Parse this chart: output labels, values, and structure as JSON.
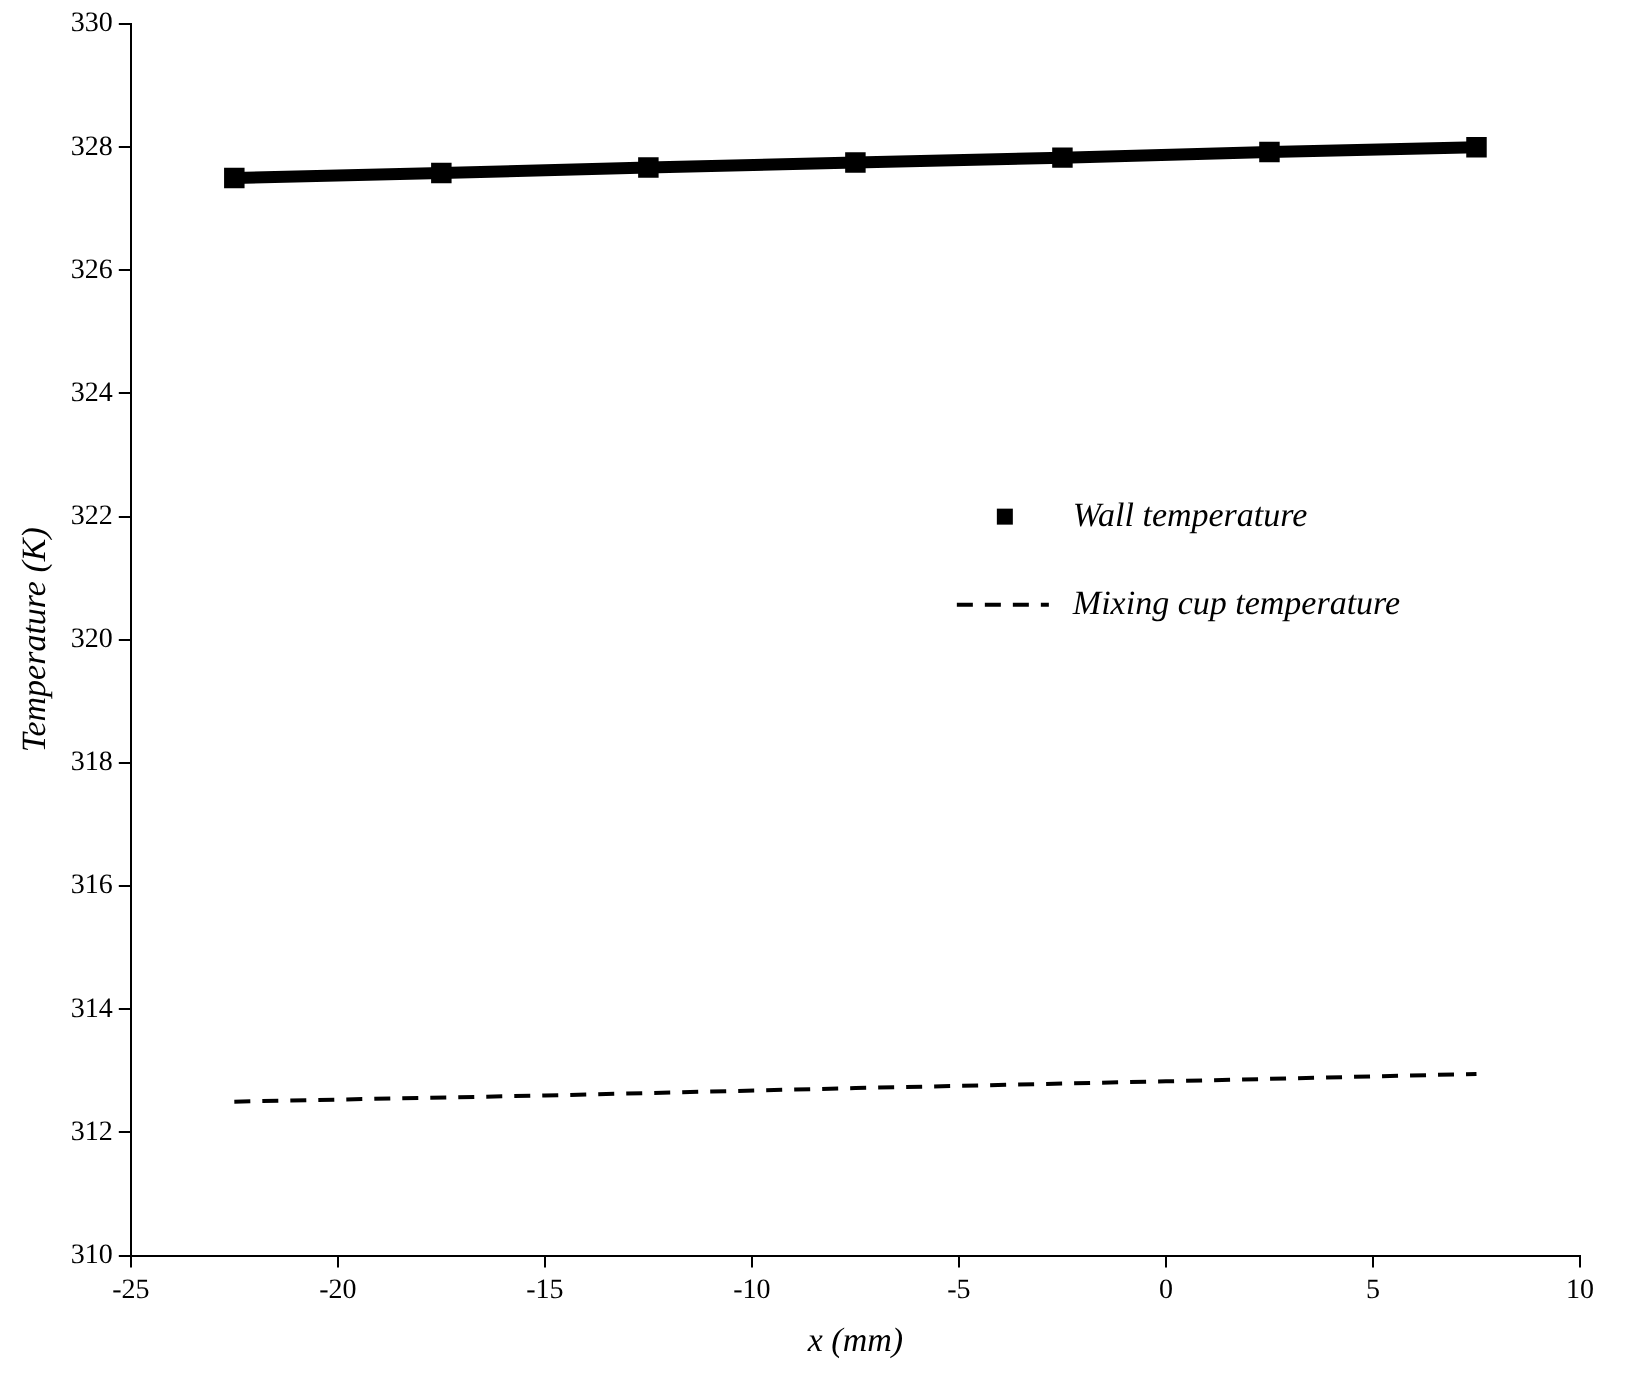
{
  "chart_data": {
    "type": "line",
    "xlabel": "x (mm)",
    "ylabel": "Temperature (K)",
    "xlim": [
      -25,
      10
    ],
    "xticks": [
      -25,
      -20,
      -15,
      -10,
      -5,
      0,
      5,
      10
    ],
    "ylim": [
      310,
      330
    ],
    "yticks": [
      310,
      312,
      314,
      316,
      318,
      320,
      322,
      324,
      326,
      328,
      330
    ],
    "grid": false,
    "legend": "right",
    "series": [
      {
        "name": "Wall temperature",
        "color": "#000000",
        "marker": "square",
        "line_style": "solid",
        "x": [
          -22.5,
          -17.5,
          -12.5,
          -7.5,
          -2.5,
          2.5,
          7.5
        ],
        "values": [
          327.5,
          327.58,
          327.67,
          327.75,
          327.83,
          327.92,
          328.0
        ]
      },
      {
        "name": "Mixing cup temperature",
        "color": "#000000",
        "marker": "none",
        "line_style": "dashed",
        "x": [
          -22.5,
          -15,
          -7.5,
          0,
          7.5
        ],
        "values": [
          312.5,
          312.6,
          312.72,
          312.83,
          312.95
        ]
      }
    ]
  }
}
